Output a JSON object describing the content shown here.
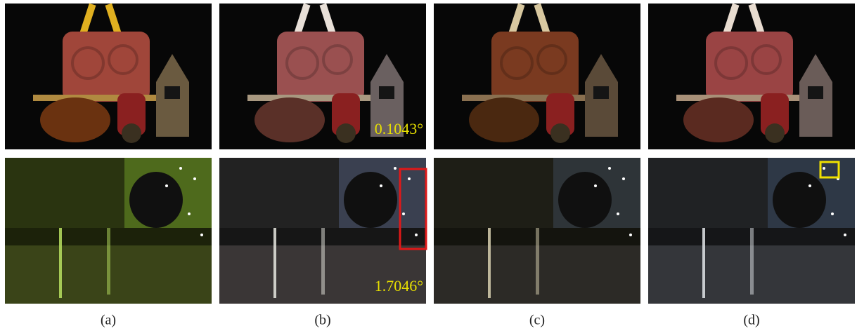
{
  "panels": [
    {
      "label": "(a)"
    },
    {
      "label": "(b)"
    },
    {
      "label": "(c)"
    },
    {
      "label": "(d)"
    }
  ],
  "annotations": [
    {
      "text": "0.1043°"
    },
    {
      "text": "1.7046°"
    }
  ]
}
